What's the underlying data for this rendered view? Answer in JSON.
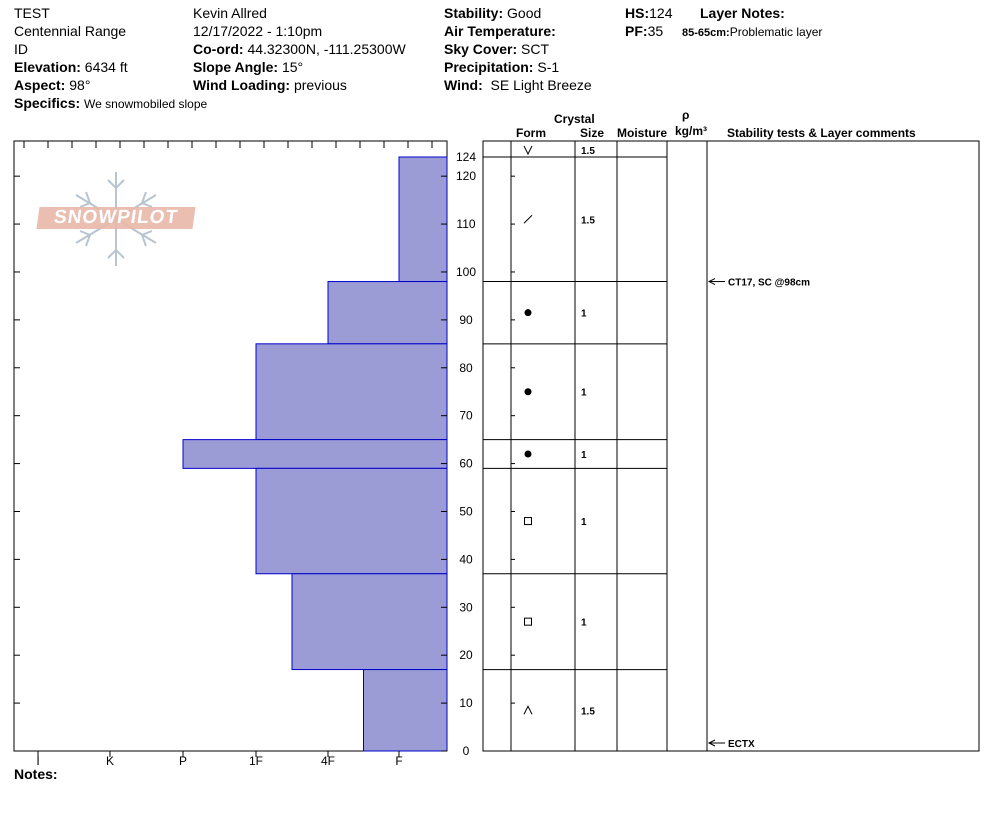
{
  "header": {
    "name": "TEST",
    "range": "Centennial Range",
    "state": "ID",
    "elevation_label": "Elevation:",
    "elevation_value": "6434 ft",
    "aspect_label": "Aspect:",
    "aspect_value": "98°",
    "specifics_label": "Specifics:",
    "specifics_value": "We snowmobiled slope",
    "observer": "Kevin Allred",
    "datetime": "12/17/2022 - 1:10pm",
    "coord_label": "Co-ord:",
    "coord_value": "44.32300N, -111.25300W",
    "slope_label": "Slope Angle:",
    "slope_value": "15°",
    "wind_loading_label": "Wind Loading:",
    "wind_loading_value": "previous",
    "stability_label": "Stability:",
    "stability_value": "Good",
    "air_temp_label": "Air Temperature:",
    "sky_label": "Sky Cover:",
    "sky_value": "SCT",
    "precip_label": "Precipitation:",
    "precip_value": "S-1",
    "wind_label": "Wind:",
    "wind_value": "SE Light Breeze",
    "hs_label": "HS:",
    "hs_value": "124",
    "pf_label": "PF:",
    "pf_value": "35",
    "layer_notes_label": "Layer Notes:",
    "layer_note_range": "85-65cm:",
    "layer_note_text": "Problematic layer"
  },
  "columns": {
    "crystal": "Crystal",
    "form": "Form",
    "size": "Size",
    "moisture": "Moisture",
    "rho": "ρ",
    "density_unit": "kg/m³",
    "comments": "Stability tests & Layer comments"
  },
  "logo_text": "SNOWPILOT",
  "notes_label": "Notes:",
  "colors": {
    "hardness_fill": "#9b9bd6",
    "hardness_stroke": "#0000cc",
    "logo": "#e8b8a8",
    "snowflake": "#b8c4d0"
  },
  "chart_data": {
    "type": "bar",
    "orientation": "horizontal",
    "x_categories": [
      "I",
      "K",
      "P",
      "1F",
      "4F",
      "F"
    ],
    "y_ticks": [
      0,
      10,
      20,
      30,
      40,
      50,
      60,
      70,
      80,
      90,
      100,
      110,
      120,
      124
    ],
    "ylim": [
      0,
      124
    ],
    "layers": [
      {
        "top": 124,
        "bottom": 98,
        "hardness": "F",
        "form": "fragment-icon",
        "size": "1.5"
      },
      {
        "top": 98,
        "bottom": 85,
        "hardness": "4F",
        "form": "round-icon",
        "size": "1"
      },
      {
        "top": 85,
        "bottom": 65,
        "hardness": "1F",
        "form": "round-icon",
        "size": "1"
      },
      {
        "top": 65,
        "bottom": 59,
        "hardness": "P",
        "form": "round-icon",
        "size": "1"
      },
      {
        "top": 59,
        "bottom": 37,
        "hardness": "1F",
        "form": "facet-icon",
        "size": "1"
      },
      {
        "top": 37,
        "bottom": 17,
        "hardness": "1F-4F",
        "form": "facet-icon",
        "size": "1"
      },
      {
        "top": 17,
        "bottom": 0,
        "hardness": "4F-F",
        "form": "depth-hoar-icon",
        "size": "1.5"
      }
    ],
    "surface_form": "surface-hoar-icon",
    "surface_size": "1.5",
    "tests": [
      {
        "depth": 98,
        "label": "CT17, SC @98cm"
      },
      {
        "depth": 0,
        "label": "ECTX"
      }
    ]
  }
}
